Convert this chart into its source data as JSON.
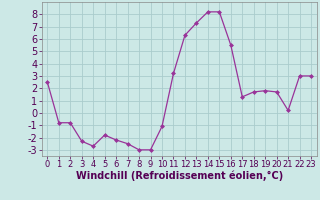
{
  "x": [
    0,
    1,
    2,
    3,
    4,
    5,
    6,
    7,
    8,
    9,
    10,
    11,
    12,
    13,
    14,
    15,
    16,
    17,
    18,
    19,
    20,
    21,
    22,
    23
  ],
  "y": [
    2.5,
    -0.8,
    -0.8,
    -2.3,
    -2.7,
    -1.8,
    -2.2,
    -2.5,
    -3.0,
    -3.0,
    -1.1,
    3.2,
    6.3,
    7.3,
    8.2,
    8.2,
    5.5,
    1.3,
    1.7,
    1.8,
    1.7,
    0.2,
    3.0,
    3.0
  ],
  "line_color": "#993399",
  "marker": "D",
  "marker_size": 2,
  "background_color": "#cce8e6",
  "grid_color": "#b0d8d6",
  "xlabel": "Windchill (Refroidissement éolien,°C)",
  "xlabel_fontsize": 7,
  "tick_fontsize": 7,
  "ylim": [
    -3.5,
    9.0
  ],
  "xlim": [
    -0.5,
    23.5
  ],
  "yticks": [
    -3,
    -2,
    -1,
    0,
    1,
    2,
    3,
    4,
    5,
    6,
    7,
    8
  ],
  "xticks": [
    0,
    1,
    2,
    3,
    4,
    5,
    6,
    7,
    8,
    9,
    10,
    11,
    12,
    13,
    14,
    15,
    16,
    17,
    18,
    19,
    20,
    21,
    22,
    23
  ]
}
